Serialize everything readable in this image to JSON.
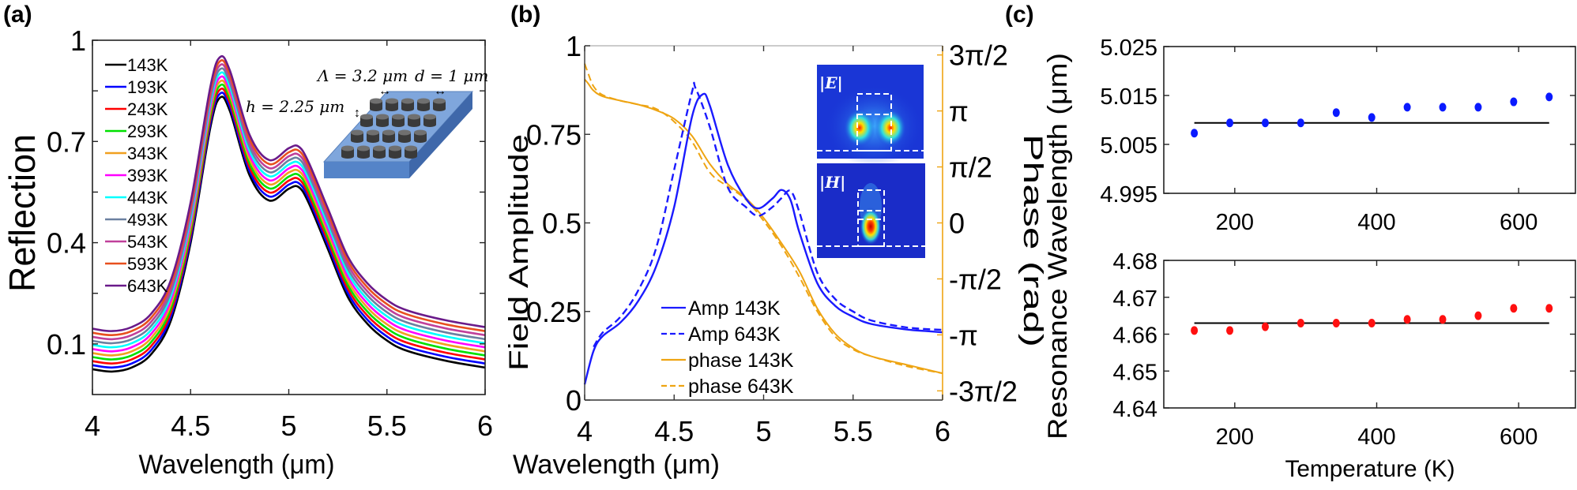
{
  "panels": {
    "a": "(a)",
    "b": "(b)",
    "c": "(c)"
  },
  "colors": {
    "amp": "#1a1aff",
    "phase": "#eea412",
    "amp_label": "#4a78d0",
    "fit": "#000000",
    "c_top_points": "#0a1aff",
    "c_bottom_points": "#ff1010"
  },
  "chart_data": [
    {
      "panel": "a",
      "type": "line",
      "xlabel": "Wavelength (μm)",
      "ylabel": "Reflection",
      "xlim": [
        4,
        6
      ],
      "ylim": [
        -0.05,
        1
      ],
      "xticks": [
        4,
        4.5,
        5,
        5.5,
        6
      ],
      "xtick_labels": [
        "4",
        "4.5",
        "5",
        "5.5",
        "6"
      ],
      "yticks": [
        0.1,
        0.25,
        0.4,
        0.55,
        0.7,
        0.85,
        1
      ],
      "ytick_labels": [
        "0.1",
        "",
        "0.4",
        "",
        "0.7",
        "",
        "1"
      ],
      "legend": "top-left",
      "x": [
        4.0,
        4.1,
        4.2,
        4.3,
        4.4,
        4.5,
        4.6,
        4.65,
        4.7,
        4.8,
        4.9,
        5.0,
        5.05,
        5.1,
        5.2,
        5.3,
        5.4,
        5.5,
        5.6,
        5.8,
        6.0
      ],
      "series": [
        {
          "name": "143K",
          "color": "#000000",
          "values": [
            0.025,
            0.018,
            0.03,
            0.07,
            0.17,
            0.4,
            0.74,
            0.83,
            0.79,
            0.6,
            0.525,
            0.56,
            0.565,
            0.52,
            0.38,
            0.24,
            0.16,
            0.11,
            0.08,
            0.05,
            0.03
          ]
        },
        {
          "name": "193K",
          "color": "#0000ff",
          "values": [
            0.037,
            0.03,
            0.042,
            0.082,
            0.182,
            0.412,
            0.752,
            0.842,
            0.802,
            0.612,
            0.537,
            0.572,
            0.577,
            0.532,
            0.392,
            0.252,
            0.172,
            0.122,
            0.092,
            0.062,
            0.042
          ]
        },
        {
          "name": "243K",
          "color": "#ff0000",
          "values": [
            0.049,
            0.042,
            0.054,
            0.094,
            0.194,
            0.424,
            0.764,
            0.854,
            0.814,
            0.624,
            0.549,
            0.584,
            0.589,
            0.544,
            0.404,
            0.264,
            0.184,
            0.134,
            0.104,
            0.074,
            0.054
          ]
        },
        {
          "name": "293K",
          "color": "#00e000",
          "values": [
            0.061,
            0.054,
            0.066,
            0.106,
            0.206,
            0.436,
            0.776,
            0.866,
            0.826,
            0.636,
            0.561,
            0.596,
            0.601,
            0.556,
            0.416,
            0.276,
            0.196,
            0.146,
            0.116,
            0.086,
            0.066
          ]
        },
        {
          "name": "343K",
          "color": "#f0a020",
          "values": [
            0.073,
            0.066,
            0.078,
            0.118,
            0.218,
            0.448,
            0.788,
            0.878,
            0.838,
            0.648,
            0.573,
            0.608,
            0.613,
            0.568,
            0.428,
            0.288,
            0.208,
            0.158,
            0.128,
            0.098,
            0.078
          ]
        },
        {
          "name": "393K",
          "color": "#ff00ff",
          "values": [
            0.085,
            0.078,
            0.09,
            0.13,
            0.23,
            0.46,
            0.8,
            0.89,
            0.85,
            0.66,
            0.585,
            0.62,
            0.625,
            0.58,
            0.44,
            0.3,
            0.22,
            0.17,
            0.14,
            0.11,
            0.09
          ]
        },
        {
          "name": "443K",
          "color": "#00ffff",
          "values": [
            0.097,
            0.09,
            0.102,
            0.142,
            0.242,
            0.472,
            0.812,
            0.902,
            0.862,
            0.672,
            0.597,
            0.632,
            0.637,
            0.592,
            0.452,
            0.312,
            0.232,
            0.182,
            0.152,
            0.122,
            0.102
          ]
        },
        {
          "name": "493K",
          "color": "#6b80a0",
          "values": [
            0.109,
            0.102,
            0.114,
            0.154,
            0.254,
            0.484,
            0.824,
            0.914,
            0.874,
            0.684,
            0.609,
            0.644,
            0.649,
            0.604,
            0.464,
            0.324,
            0.244,
            0.194,
            0.164,
            0.134,
            0.114
          ]
        },
        {
          "name": "543K",
          "color": "#c0409a",
          "values": [
            0.121,
            0.114,
            0.126,
            0.166,
            0.266,
            0.496,
            0.836,
            0.926,
            0.886,
            0.696,
            0.621,
            0.656,
            0.661,
            0.616,
            0.476,
            0.336,
            0.256,
            0.206,
            0.176,
            0.146,
            0.126
          ]
        },
        {
          "name": "593K",
          "color": "#e8501e",
          "values": [
            0.133,
            0.126,
            0.138,
            0.178,
            0.278,
            0.508,
            0.848,
            0.938,
            0.898,
            0.708,
            0.633,
            0.668,
            0.673,
            0.628,
            0.488,
            0.348,
            0.268,
            0.218,
            0.188,
            0.158,
            0.138
          ]
        },
        {
          "name": "643K",
          "color": "#6a1a8a",
          "values": [
            0.145,
            0.138,
            0.15,
            0.19,
            0.29,
            0.52,
            0.86,
            0.95,
            0.91,
            0.72,
            0.645,
            0.68,
            0.685,
            0.64,
            0.5,
            0.36,
            0.28,
            0.23,
            0.2,
            0.17,
            0.15
          ]
        }
      ],
      "inset": {
        "period_label": "Λ = 3.2 μm",
        "diameter_label": "d = 1 μm",
        "height_label": "h = 2.25 μm"
      }
    },
    {
      "panel": "b",
      "type": "line",
      "xlabel": "Wavelength (μm)",
      "ylabel": "Field Amplitude",
      "y2label": "Phase (rad)",
      "xlim": [
        4,
        6
      ],
      "ylim": [
        0,
        1
      ],
      "y2lim": [
        -4.97,
        4.97
      ],
      "xticks": [
        4,
        4.5,
        5,
        5.5,
        6
      ],
      "xtick_labels": [
        "4",
        "4.5",
        "5",
        "5.5",
        "6"
      ],
      "yticks": [
        0,
        0.25,
        0.5,
        0.75,
        1
      ],
      "ytick_labels": [
        "0",
        "0.25",
        "0.5",
        "0.75",
        "1"
      ],
      "y2ticks": [
        -4.712,
        -3.1416,
        -1.5708,
        0,
        1.5708,
        3.1416,
        4.712
      ],
      "y2tick_labels": [
        "-3π/2",
        "-π",
        "-π/2",
        "0",
        "π/2",
        "π",
        "3π/2"
      ],
      "legend": "bottom-center",
      "series": [
        {
          "name": "Amp 143K",
          "axis": "left",
          "style": "solid",
          "color": "#1a1aff",
          "x": [
            4.0,
            4.05,
            4.1,
            4.2,
            4.3,
            4.4,
            4.5,
            4.6,
            4.66,
            4.7,
            4.8,
            4.9,
            4.97,
            5.05,
            5.1,
            5.15,
            5.2,
            5.3,
            5.4,
            5.5,
            5.6,
            5.8,
            5.9,
            6.0
          ],
          "values": [
            0.044,
            0.139,
            0.18,
            0.219,
            0.28,
            0.378,
            0.545,
            0.8,
            0.863,
            0.83,
            0.664,
            0.569,
            0.541,
            0.569,
            0.593,
            0.565,
            0.473,
            0.33,
            0.266,
            0.235,
            0.215,
            0.199,
            0.195,
            0.191
          ]
        },
        {
          "name": "Amp 643K",
          "axis": "left",
          "style": "dashed",
          "color": "#1a1aff",
          "x": [
            4.05,
            4.1,
            4.2,
            4.3,
            4.4,
            4.5,
            4.6,
            4.62,
            4.7,
            4.8,
            4.9,
            4.97,
            5.05,
            5.1,
            5.15,
            5.2,
            5.3,
            5.4,
            5.5,
            5.6,
            5.8,
            6.0
          ],
          "values": [
            0.15,
            0.19,
            0.235,
            0.31,
            0.43,
            0.65,
            0.87,
            0.88,
            0.77,
            0.6,
            0.545,
            0.52,
            0.545,
            0.57,
            0.59,
            0.53,
            0.36,
            0.285,
            0.25,
            0.225,
            0.205,
            0.198
          ]
        },
        {
          "name": "phase 143K",
          "axis": "right",
          "style": "solid",
          "color": "#eea412",
          "x": [
            4.0,
            4.02,
            4.05,
            4.1,
            4.2,
            4.3,
            4.4,
            4.5,
            4.6,
            4.7,
            4.8,
            4.9,
            5.0,
            5.1,
            5.2,
            5.3,
            5.4,
            5.5,
            5.6,
            5.8,
            6.0
          ],
          "values": [
            4.03,
            3.91,
            3.71,
            3.55,
            3.43,
            3.32,
            3.16,
            2.92,
            2.44,
            1.65,
            1.09,
            0.7,
            0.14,
            -0.57,
            -1.36,
            -2.4,
            -3.11,
            -3.51,
            -3.74,
            -3.98,
            -4.22
          ]
        },
        {
          "name": "phase 643K",
          "axis": "right",
          "style": "dashed",
          "color": "#eea412",
          "x": [
            4.0,
            4.02,
            4.05,
            4.1,
            4.2,
            4.3,
            4.4,
            4.5,
            4.6,
            4.7,
            4.8,
            4.9,
            5.0,
            5.1,
            5.2,
            5.3,
            5.4,
            5.5,
            5.6,
            5.8,
            6.0
          ],
          "values": [
            4.47,
            4.19,
            3.83,
            3.59,
            3.43,
            3.32,
            3.2,
            2.84,
            2.28,
            1.41,
            1.02,
            0.66,
            0.06,
            -0.65,
            -1.52,
            -2.48,
            -3.19,
            -3.55,
            -3.74,
            -4.02,
            -4.22
          ]
        }
      ],
      "inset": {
        "e_label": "|E|",
        "h_label": "|H|"
      }
    },
    {
      "panel": "c-top",
      "type": "scatter",
      "ylabel": "Resonance Wavelength (μm)",
      "xlim": [
        100,
        680
      ],
      "ylim": [
        4.995,
        5.025
      ],
      "xticks": [
        200,
        400,
        600
      ],
      "xtick_labels": [
        "200",
        "400",
        "600"
      ],
      "yticks": [
        4.995,
        5.005,
        5.015,
        5.025
      ],
      "ytick_labels": [
        "4.995",
        "5.005",
        "5.015",
        "5.025"
      ],
      "x": [
        143,
        193,
        243,
        293,
        343,
        393,
        443,
        493,
        543,
        593,
        643
      ],
      "values": [
        5.0073,
        5.0094,
        5.0094,
        5.0094,
        5.0115,
        5.0105,
        5.0126,
        5.0126,
        5.0126,
        5.0137,
        5.0147
      ],
      "reference_line": 5.0094,
      "color": "#0a1aff"
    },
    {
      "panel": "c-bottom",
      "type": "scatter",
      "xlabel": "Temperature (K)",
      "xlim": [
        100,
        680
      ],
      "ylim": [
        4.64,
        4.68
      ],
      "xticks": [
        200,
        400,
        600
      ],
      "xtick_labels": [
        "200",
        "400",
        "600"
      ],
      "yticks": [
        4.64,
        4.65,
        4.66,
        4.67,
        4.68
      ],
      "ytick_labels": [
        "4.64",
        "4.65",
        "4.66",
        "4.67",
        "4.68"
      ],
      "x": [
        143,
        193,
        243,
        293,
        343,
        393,
        443,
        493,
        543,
        593,
        643
      ],
      "values": [
        4.661,
        4.661,
        4.662,
        4.663,
        4.663,
        4.663,
        4.664,
        4.664,
        4.665,
        4.667,
        4.667
      ],
      "reference_line": 4.663,
      "color": "#ff1010"
    }
  ]
}
